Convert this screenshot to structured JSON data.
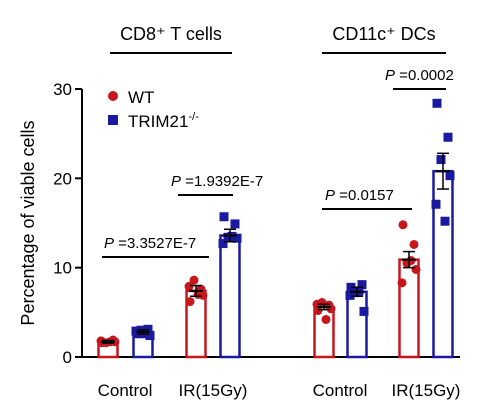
{
  "chart_data": {
    "type": "bar",
    "ylabel": "Percentage of viable cells",
    "ylim": [
      0,
      30
    ],
    "yticks": [
      0,
      10,
      20,
      30
    ],
    "panels": [
      {
        "title": "CD8⁺ T cells",
        "categories": [
          "Control",
          "IR(15Gy)"
        ],
        "comparisons": [
          {
            "label": "P =3.3527E-7",
            "between": [
              "WT Control",
              "WT IR(15Gy)"
            ]
          },
          {
            "label": "P =1.9392E-7",
            "between": [
              "WT IR(15Gy)",
              "TRIM21-/- IR(15Gy)"
            ]
          }
        ]
      },
      {
        "title": "CD11c⁺ DCs",
        "categories": [
          "Control",
          "IR(15Gy)"
        ],
        "comparisons": [
          {
            "label": "P =0.0157",
            "between": [
              "WT Control",
              "WT IR(15Gy)"
            ]
          },
          {
            "label": "P =0.0002",
            "between": [
              "WT IR(15Gy)",
              "TRIM21-/- IR(15Gy)"
            ]
          }
        ]
      }
    ],
    "series": [
      {
        "name": "WT",
        "color": "#c8161d",
        "marker": "circle",
        "values": [
          [
            1.7,
            7.4
          ],
          [
            5.6,
            10.9
          ]
        ],
        "errors": [
          [
            0.15,
            0.6
          ],
          [
            0.3,
            0.9
          ]
        ],
        "points": [
          [
            [
              1.6,
              1.9,
              1.6,
              1.7,
              1.8,
              1.7
            ],
            [
              6.2,
              7.6,
              8.6,
              6.9,
              7.9,
              7.0
            ]
          ],
          [
            [
              5.2,
              5.8,
              6.1,
              5.4,
              5.9,
              4.2
            ],
            [
              14.8,
              12.6,
              10.5,
              9.8,
              8.3,
              10.8
            ]
          ]
        ]
      },
      {
        "name": "TRIM21-/-",
        "color": "#1a1aa0",
        "marker": "square",
        "values": [
          [
            2.8,
            13.6
          ],
          [
            7.3,
            20.8
          ]
        ],
        "errors": [
          [
            0.25,
            0.7
          ],
          [
            0.5,
            2.0
          ]
        ],
        "points": [
          [
            [
              2.6,
              3.1,
              3.0,
              2.4,
              2.9,
              2.6
            ],
            [
              15.7,
              14.9,
              13.4,
              13.3,
              12.7,
              13.5
            ]
          ],
          [
            [
              7.8,
              8.1,
              7.2,
              5.1,
              6.9,
              7.4
            ],
            [
              28.4,
              24.6,
              22.1,
              20.3,
              17.1,
              15.2
            ]
          ]
        ]
      }
    ],
    "legend": {
      "position": "top-left",
      "entries": [
        {
          "label": "WT"
        },
        {
          "label": "TRIM21",
          "superscript": "-/-"
        }
      ]
    }
  }
}
